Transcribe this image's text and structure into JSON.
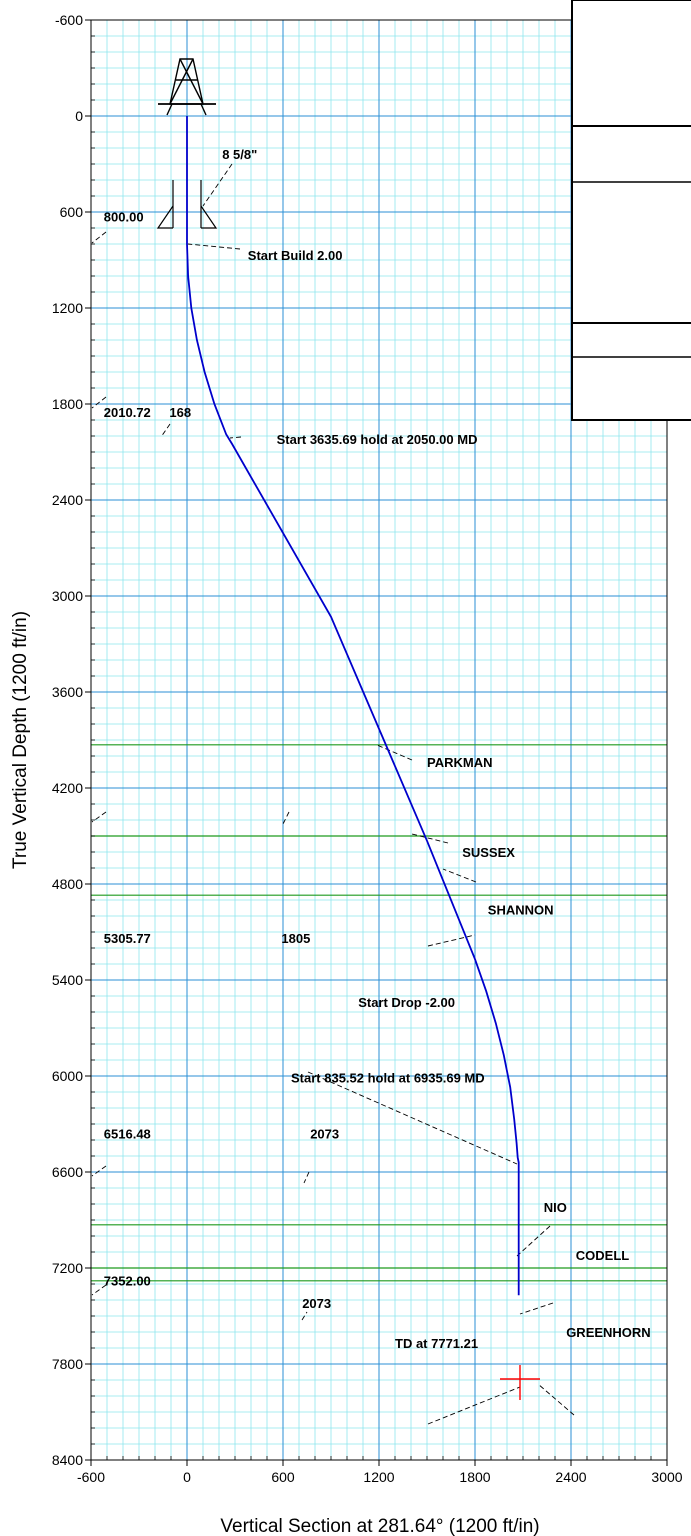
{
  "chart_data": {
    "type": "line",
    "xlabel": "Vertical Section at 281.64° (1200 ft/in)",
    "ylabel": "True Vertical Depth (1200 ft/in)",
    "xlim": [
      -600,
      3000
    ],
    "ylim": [
      -600,
      8400
    ],
    "y_inverted": true,
    "grid": true,
    "x_ticks": [
      "-600",
      "0",
      "600",
      "1200",
      "1800",
      "2400",
      "3000"
    ],
    "y_ticks": [
      "-600",
      "0",
      "600",
      "1200",
      "1800",
      "2400",
      "3000",
      "3600",
      "4200",
      "4800",
      "5400",
      "6000",
      "6600",
      "7200",
      "7800",
      "8400"
    ],
    "colors": {
      "major_grid": "#2b8fd6",
      "minor_grid": "#8ee6ee",
      "wellpath": "#0000cc",
      "formation": "#1e9a1e",
      "target": "#ff0000"
    },
    "series": [
      {
        "x": [
          0,
          0,
          7,
          27,
          62,
          110,
          171,
          245,
          282,
          900,
          1500,
          1800,
          1870,
          1930,
          1980,
          2020,
          2045,
          2060,
          2067,
          2073,
          2073,
          2073
        ],
        "y": [
          0,
          800,
          1000,
          1200,
          1400,
          1600,
          1800,
          1990,
          2050,
          3130,
          4530,
          5270,
          5470,
          5670,
          5870,
          6070,
          6270,
          6420,
          6510,
          6540,
          7000,
          7370
        ]
      }
    ],
    "formation_tops": [
      {
        "name": "PARKMAN",
        "tvd": 3930
      },
      {
        "name": "SUSSEX",
        "tvd": 4500
      },
      {
        "name": "SHANNON",
        "tvd": 4870
      },
      {
        "name": "NIO",
        "tvd": 6930
      },
      {
        "name": "CODELL",
        "tvd": 7200
      },
      {
        "name": "GREENHORN",
        "tvd": 7280
      }
    ],
    "casing": {
      "label": "8 5/8\"",
      "depth": 700
    },
    "annotations": [
      {
        "text": "8 5/8\"",
        "x": 220,
        "y": 270
      },
      {
        "text": "800.00",
        "x": -520,
        "y": 660
      },
      {
        "text": "Start Build 2.00",
        "x": 380,
        "y": 900
      },
      {
        "text": "2010.72",
        "x": -520,
        "y": 1880
      },
      {
        "text": "168",
        "x": -110,
        "y": 1880
      },
      {
        "text": "Start 3635.69 hold at 2050.00 MD",
        "x": 560,
        "y": 2050
      },
      {
        "text": "PARKMAN",
        "x": 1500,
        "y": 4070
      },
      {
        "text": "SUSSEX",
        "x": 1720,
        "y": 4630
      },
      {
        "text": "SHANNON",
        "x": 1880,
        "y": 4990
      },
      {
        "text": "5305.77",
        "x": -520,
        "y": 5170
      },
      {
        "text": "1805",
        "x": 590,
        "y": 5170
      },
      {
        "text": "Start Drop -2.00",
        "x": 1070,
        "y": 5570
      },
      {
        "text": "Start 835.52 hold at 6935.69 MD",
        "x": 650,
        "y": 6040
      },
      {
        "text": "6516.48",
        "x": -520,
        "y": 6390
      },
      {
        "text": "2073",
        "x": 770,
        "y": 6390
      },
      {
        "text": "NIO",
        "x": 2230,
        "y": 6850
      },
      {
        "text": "CODELL",
        "x": 2430,
        "y": 7150
      },
      {
        "text": "7352.00",
        "x": -520,
        "y": 7310
      },
      {
        "text": "2073",
        "x": 720,
        "y": 7450
      },
      {
        "text": "TD at 7771.21",
        "x": 1300,
        "y": 7700
      },
      {
        "text": "GREENHORN",
        "x": 2370,
        "y": 7630
      }
    ]
  }
}
